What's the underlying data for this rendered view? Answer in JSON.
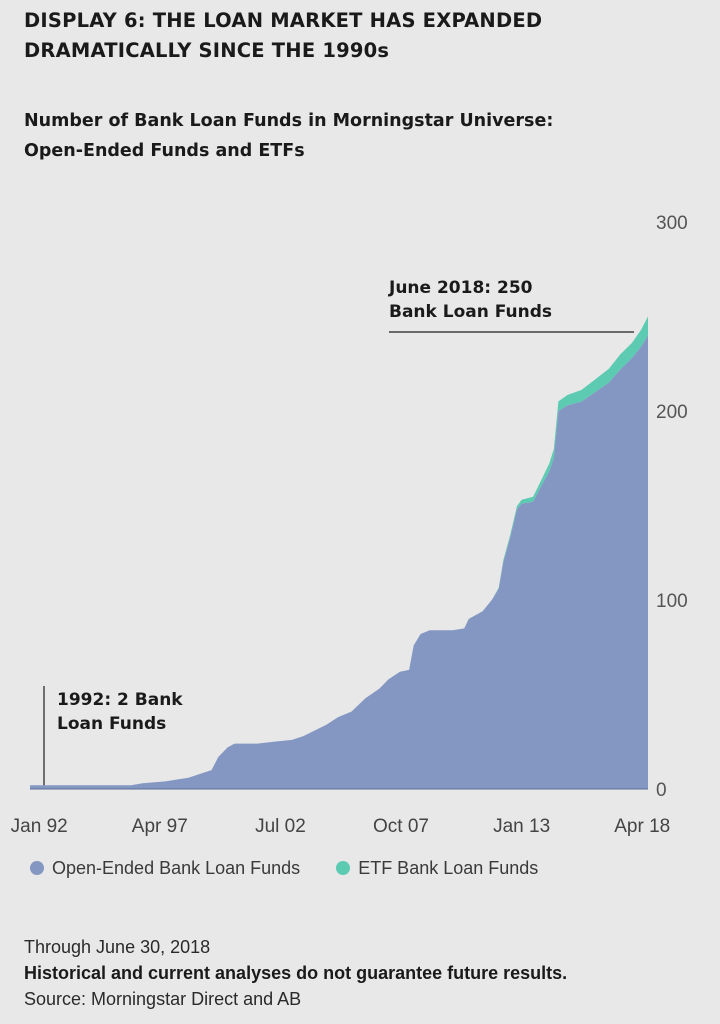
{
  "display_title": {
    "line1": "DISPLAY 6: THE LOAN MARKET HAS EXPANDED",
    "line2": "DRAMATICALLY SINCE THE 1990s"
  },
  "chart_title": {
    "line1": "Number of Bank Loan Funds in Morningstar Universe:",
    "line2": "Open-Ended Funds and ETFs"
  },
  "colors": {
    "open_ended": "#8397c2",
    "etf": "#5ccbb2",
    "background": "#e8e8e8",
    "annotation_line": "#1e1e1e"
  },
  "chart_data": {
    "type": "area",
    "stacked": true,
    "x_unit": "year",
    "x_ticks": [
      {
        "label": "Jan 92",
        "x": 1992.0
      },
      {
        "label": "Apr 97",
        "x": 1997.25
      },
      {
        "label": "Jul 02",
        "x": 2002.5
      },
      {
        "label": "Oct 07",
        "x": 2007.75
      },
      {
        "label": "Jan 13",
        "x": 2013.0
      },
      {
        "label": "Apr 18",
        "x": 2018.25
      }
    ],
    "y_ticks": [
      0,
      100,
      200,
      300
    ],
    "ylim": [
      0,
      300
    ],
    "xlim": [
      1991.6,
      2018.5
    ],
    "grid": false,
    "y_axis_position": "right",
    "legend_position": "bottom",
    "annotations": [
      {
        "text_lines": [
          "1992: 2 Bank",
          "Loan Funds"
        ],
        "x": 1992.0,
        "y": 2
      },
      {
        "text_lines": [
          "June 2018: 250",
          "Bank Loan Funds"
        ],
        "x": 2018.5,
        "y": 250
      }
    ],
    "series": [
      {
        "name": "Open-Ended Bank Loan Funds",
        "color_key": "open_ended",
        "points": [
          [
            1991.6,
            2
          ],
          [
            1996.0,
            2
          ],
          [
            1996.5,
            3
          ],
          [
            1997.5,
            4
          ],
          [
            1998.0,
            5
          ],
          [
            1998.5,
            6
          ],
          [
            1999.0,
            8
          ],
          [
            1999.5,
            10
          ],
          [
            1999.8,
            17
          ],
          [
            2000.2,
            22
          ],
          [
            2000.5,
            24
          ],
          [
            2001.5,
            24
          ],
          [
            2002.2,
            25
          ],
          [
            2003.0,
            26
          ],
          [
            2003.5,
            28
          ],
          [
            2004.0,
            31
          ],
          [
            2004.5,
            34
          ],
          [
            2005.0,
            38
          ],
          [
            2005.6,
            41
          ],
          [
            2006.2,
            48
          ],
          [
            2006.8,
            53
          ],
          [
            2007.2,
            58
          ],
          [
            2007.7,
            62
          ],
          [
            2008.1,
            63
          ],
          [
            2008.3,
            76
          ],
          [
            2008.6,
            82
          ],
          [
            2009.0,
            84
          ],
          [
            2010.0,
            84
          ],
          [
            2010.5,
            85
          ],
          [
            2010.7,
            90
          ],
          [
            2011.3,
            94
          ],
          [
            2011.7,
            100
          ],
          [
            2012.0,
            106
          ],
          [
            2012.2,
            120
          ],
          [
            2012.5,
            133
          ],
          [
            2012.8,
            148
          ],
          [
            2013.0,
            151
          ],
          [
            2013.5,
            152
          ],
          [
            2013.8,
            159
          ],
          [
            2014.2,
            168
          ],
          [
            2014.4,
            175
          ],
          [
            2014.6,
            200
          ],
          [
            2015.0,
            203
          ],
          [
            2015.6,
            205
          ],
          [
            2016.2,
            210
          ],
          [
            2016.8,
            215
          ],
          [
            2017.3,
            222
          ],
          [
            2017.8,
            228
          ],
          [
            2018.2,
            234
          ],
          [
            2018.5,
            240
          ]
        ]
      },
      {
        "name": "ETF Bank Loan Funds",
        "color_key": "etf",
        "points": [
          [
            1991.6,
            0
          ],
          [
            2011.8,
            0
          ],
          [
            2012.2,
            1
          ],
          [
            2013.0,
            2
          ],
          [
            2013.8,
            3
          ],
          [
            2014.5,
            5
          ],
          [
            2015.5,
            6
          ],
          [
            2016.5,
            7
          ],
          [
            2017.3,
            8
          ],
          [
            2017.8,
            8
          ],
          [
            2018.2,
            9
          ],
          [
            2018.5,
            10
          ]
        ]
      }
    ]
  },
  "footnotes": {
    "through": "Through June 30, 2018",
    "disclaimer": "Historical and current analyses do not guarantee future results.",
    "source": "Source: Morningstar Direct and AB"
  }
}
